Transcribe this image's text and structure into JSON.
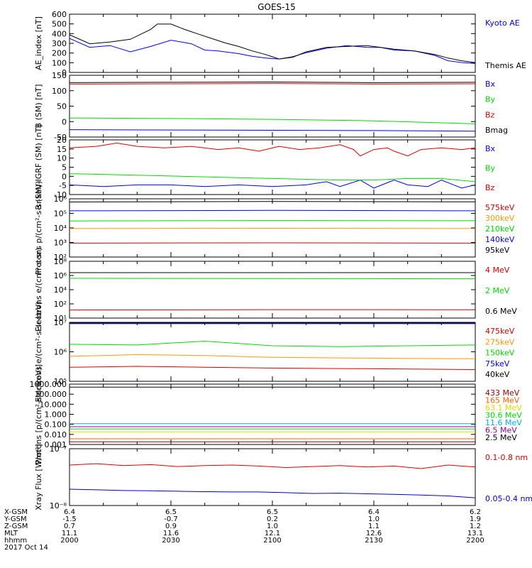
{
  "title": "GOES-15",
  "chart_data": [
    {
      "type": "line",
      "ylabel": "AE_index [nT]",
      "ylim": [
        0,
        650
      ],
      "yticks": [
        "0",
        "100",
        "200",
        "300",
        "400",
        "500",
        "600"
      ],
      "xlim": [
        0,
        120
      ],
      "series": [
        {
          "name": "Kyoto AE",
          "color": "#0000ff",
          "x": [
            0,
            6,
            12,
            18,
            24,
            30,
            36,
            40,
            44,
            50,
            54,
            58,
            62,
            66,
            70,
            76,
            82,
            88,
            92,
            96,
            102,
            108,
            112,
            116,
            120
          ],
          "y": [
            380,
            280,
            300,
            230,
            290,
            360,
            320,
            250,
            240,
            210,
            180,
            160,
            150,
            175,
            220,
            270,
            300,
            280,
            280,
            250,
            240,
            190,
            130,
            110,
            100
          ]
        },
        {
          "name": "Themis AE",
          "color": "#000000",
          "x": [
            0,
            6,
            12,
            18,
            24,
            26,
            30,
            34,
            38,
            42,
            46,
            50,
            54,
            58,
            62,
            66,
            70,
            76,
            82,
            88,
            92,
            96,
            102,
            108,
            112,
            116,
            120
          ],
          "y": [
            420,
            320,
            340,
            370,
            480,
            540,
            540,
            480,
            430,
            380,
            330,
            290,
            240,
            200,
            150,
            170,
            230,
            280,
            290,
            300,
            280,
            260,
            240,
            200,
            160,
            130,
            110
          ]
        }
      ]
    },
    {
      "type": "line",
      "ylabel": "B (SM) [nT]",
      "ylim": [
        -60,
        150
      ],
      "yticks": [
        "-50",
        "0",
        "50",
        "100",
        "150"
      ],
      "xlim": [
        0,
        120
      ],
      "series": [
        {
          "name": "Bx",
          "color": "#0000ff",
          "x": [
            0,
            30,
            60,
            90,
            120
          ],
          "y": [
            -35,
            -36,
            -37,
            -38,
            -40
          ]
        },
        {
          "name": "By",
          "color": "#00dd00",
          "x": [
            0,
            30,
            60,
            90,
            120
          ],
          "y": [
            5,
            3,
            0,
            -5,
            -15
          ]
        },
        {
          "name": "Bz",
          "color": "#dd0000",
          "x": [
            0,
            30,
            60,
            90,
            120
          ],
          "y": [
            120,
            121,
            122,
            120,
            121
          ]
        },
        {
          "name": "Bmag",
          "color": "#000000",
          "x": [
            0,
            30,
            60,
            90,
            120
          ],
          "y": [
            125,
            126,
            127,
            125,
            126
          ]
        }
      ]
    },
    {
      "type": "line",
      "ylabel": "B (SM)-IGRF (SM) [nT]",
      "ylim": [
        -12,
        22
      ],
      "yticks": [
        "-10",
        "-5",
        "0",
        "5",
        "10",
        "15",
        "20"
      ],
      "xlim": [
        0,
        120
      ],
      "series": [
        {
          "name": "Bx",
          "color": "#0000ff",
          "x": [
            0,
            10,
            20,
            30,
            40,
            50,
            60,
            70,
            76,
            80,
            86,
            90,
            96,
            100,
            106,
            110,
            116,
            120
          ],
          "y": [
            -6,
            -7,
            -6,
            -6,
            -7,
            -6,
            -7,
            -6,
            -4,
            -7,
            -3,
            -8,
            -3,
            -6,
            -7,
            -3,
            -8,
            -6
          ]
        },
        {
          "name": "By",
          "color": "#00dd00",
          "x": [
            0,
            20,
            40,
            60,
            80,
            90,
            100,
            110,
            120
          ],
          "y": [
            1,
            0,
            -1,
            -2,
            -3,
            -3,
            -2,
            -2,
            -4
          ]
        },
        {
          "name": "Bz",
          "color": "#dd0000",
          "x": [
            0,
            8,
            14,
            20,
            28,
            36,
            44,
            50,
            56,
            62,
            68,
            74,
            80,
            84,
            86,
            90,
            94,
            96,
            100,
            104,
            110,
            116,
            120
          ],
          "y": [
            17,
            18,
            20,
            18,
            17,
            18,
            16,
            17,
            15,
            18,
            16,
            17,
            19,
            16,
            12,
            16,
            17,
            15,
            12,
            16,
            17,
            16,
            17
          ]
        }
      ]
    },
    {
      "type": "line",
      "ylabel": "Protons p/(cm²-s-sr-keV)",
      "ylog": true,
      "ylim": [
        100,
        1000000
      ],
      "yticks": [
        "10²",
        "10³",
        "10⁴",
        "10⁵",
        "10⁶"
      ],
      "xlim": [
        0,
        120
      ],
      "series": [
        {
          "name": "575keV",
          "color": "#dd0000",
          "x": [
            0,
            60,
            120
          ],
          "y": [
            900,
            950,
            900
          ]
        },
        {
          "name": "300keV",
          "color": "#ff9900",
          "x": [
            0,
            60,
            120
          ],
          "y": [
            9000,
            9500,
            9000
          ]
        },
        {
          "name": "210keV",
          "color": "#00dd00",
          "x": [
            0,
            60,
            120
          ],
          "y": [
            30000,
            32000,
            31000
          ]
        },
        {
          "name": "140keV",
          "color": "#0000ff",
          "x": [
            0,
            60,
            120
          ],
          "y": [
            150000,
            160000,
            150000
          ]
        },
        {
          "name": "95keV",
          "color": "#000000",
          "x": [
            0,
            60,
            120
          ],
          "y": [
            600000,
            650000,
            620000
          ]
        }
      ]
    },
    {
      "type": "line",
      "ylabel": "Electrons e/(cm²-s-sr)",
      "ylog": true,
      "ylim": [
        10,
        100000000
      ],
      "yticks": [
        "10¹",
        "10²",
        "10⁴",
        "10⁶",
        "10⁸"
      ],
      "xlim": [
        0,
        120
      ],
      "series": [
        {
          "name": "4 MeV",
          "color": "#dd0000",
          "x": [
            0,
            60,
            120
          ],
          "y": [
            100,
            110,
            105
          ]
        },
        {
          "name": "2 MeV",
          "color": "#00dd00",
          "x": [
            0,
            60,
            120
          ],
          "y": [
            800000,
            750000,
            700000
          ]
        },
        {
          "name": "0.6 MeV",
          "color": "#000000",
          "x": [
            0,
            60,
            120
          ],
          "y": [
            4000000,
            4000000,
            4000000
          ]
        }
      ]
    },
    {
      "type": "line",
      "ylabel": "Electrons e/(cm²-s-sr-keV)",
      "ylog": true,
      "ylim": [
        100000,
        10000000
      ],
      "yticks": [
        "10⁵",
        "10⁶",
        "10⁷"
      ],
      "xlim": [
        0,
        120
      ],
      "series": [
        {
          "name": "475keV",
          "color": "#dd0000",
          "x": [
            0,
            20,
            40,
            60,
            80,
            100,
            120
          ],
          "y": [
            300000,
            320000,
            300000,
            280000,
            270000,
            260000,
            250000
          ]
        },
        {
          "name": "275keV",
          "color": "#ff9900",
          "x": [
            0,
            20,
            40,
            60,
            80,
            100,
            120
          ],
          "y": [
            700000,
            800000,
            750000,
            650000,
            620000,
            600000,
            580000
          ]
        },
        {
          "name": "150keV",
          "color": "#00dd00",
          "x": [
            0,
            20,
            40,
            60,
            80,
            100,
            120
          ],
          "y": [
            1800000,
            1700000,
            2300000,
            1600000,
            1500000,
            1600000,
            1700000
          ]
        },
        {
          "name": "75keV",
          "color": "#0000ff",
          "x": [
            0,
            60,
            120
          ],
          "y": [
            9000000,
            9000000,
            9000000
          ]
        },
        {
          "name": "40keV",
          "color": "#000000",
          "x": [
            0,
            60,
            120
          ],
          "y": [
            9500000,
            9500000,
            9500000
          ]
        }
      ]
    },
    {
      "type": "line",
      "ylabel": "Protons [p/(cm²-s-sr-keV)]",
      "ylog": true,
      "ylim": [
        0.0008,
        1000
      ],
      "yticks": [
        "0.001",
        "0.010",
        "0.100",
        "1.000",
        "10.000",
        "100.000",
        "1000.000"
      ],
      "xlim": [
        0,
        120
      ],
      "series": [
        {
          "name": "433 MeV",
          "color": "#990000",
          "x": [
            0,
            60,
            120
          ],
          "y": [
            0.0015,
            0.0015,
            0.0015
          ]
        },
        {
          "name": "165 MeV",
          "color": "#ff6600",
          "x": [
            0,
            60,
            120
          ],
          "y": [
            0.003,
            0.003,
            0.003
          ]
        },
        {
          "name": "63.1 MeV",
          "color": "#dddd00",
          "x": [
            0,
            60,
            120
          ],
          "y": [
            0.015,
            0.015,
            0.015
          ]
        },
        {
          "name": "30.6 MeV",
          "color": "#00dd00",
          "x": [
            0,
            60,
            120
          ],
          "y": [
            0.03,
            0.03,
            0.03
          ]
        },
        {
          "name": "11.6 MeV",
          "color": "#00aaff",
          "x": [
            0,
            60,
            120
          ],
          "y": [
            0.1,
            0.1,
            0.1
          ]
        },
        {
          "name": "6.5 MeV",
          "color": "#990099",
          "x": [
            0,
            60,
            120
          ],
          "y": [
            0.05,
            0.05,
            0.05
          ]
        },
        {
          "name": "2.5 MeV",
          "color": "#000000",
          "x": [
            0,
            60,
            120
          ],
          "y": [
            500,
            500,
            500
          ]
        }
      ]
    },
    {
      "type": "line",
      "ylabel": "Xray Flux [W/m²]",
      "ylog": true,
      "ylim": [
        9e-09,
        1e-07
      ],
      "yticks": [
        "10⁻⁸",
        "10⁻⁷"
      ],
      "xlim": [
        0,
        120
      ],
      "series": [
        {
          "name": "0.1-0.8 nm",
          "color": "#dd0000",
          "x": [
            0,
            8,
            16,
            24,
            32,
            40,
            48,
            56,
            64,
            72,
            80,
            88,
            96,
            104,
            112,
            120
          ],
          "y": [
            5e-08,
            5.3e-08,
            4.9e-08,
            5.1e-08,
            4.7e-08,
            4.9e-08,
            5e-08,
            4.8e-08,
            4.5e-08,
            4.7e-08,
            4.9e-08,
            4.6e-08,
            4.8e-08,
            4.3e-08,
            5e-08,
            4.6e-08
          ]
        },
        {
          "name": "0.05-0.4 nm",
          "color": "#0000cc",
          "x": [
            0,
            8,
            16,
            24,
            32,
            40,
            48,
            56,
            64,
            72,
            80,
            88,
            96,
            104,
            112,
            120
          ],
          "y": [
            1.8e-08,
            1.75e-08,
            1.7e-08,
            1.68e-08,
            1.65e-08,
            1.62e-08,
            1.6e-08,
            1.6e-08,
            1.55e-08,
            1.5e-08,
            1.52e-08,
            1.48e-08,
            1.45e-08,
            1.4e-08,
            1.35e-08,
            1.25e-08
          ]
        }
      ]
    }
  ],
  "ephemeris": {
    "row_labels": [
      "X-GSM",
      "Y-GSM",
      "Z-GSM",
      "MLT",
      "hhmm"
    ],
    "date": "2017 Oct 14",
    "columns": [
      {
        "x": 0,
        "values": [
          "6.4",
          "-1.5",
          "0.7",
          "11.1",
          "2000"
        ]
      },
      {
        "x": 30,
        "values": [
          "6.5",
          "-0.7",
          "0.9",
          "11.6",
          "2030"
        ]
      },
      {
        "x": 60,
        "values": [
          "6.5",
          "0.2",
          "1.0",
          "12.1",
          "2100"
        ]
      },
      {
        "x": 90,
        "values": [
          "6.4",
          "1.0",
          "1.1",
          "12.6",
          "2130"
        ]
      },
      {
        "x": 120,
        "values": [
          "6.2",
          "1.9",
          "1.2",
          "13.1",
          "2200"
        ]
      }
    ]
  }
}
